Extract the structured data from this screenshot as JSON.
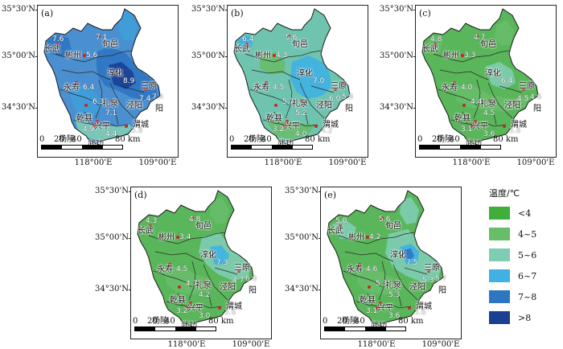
{
  "lat_labels": [
    "35°30'N",
    "35°00'N",
    "34°30'N"
  ],
  "lon_labels": [
    "118°00'E",
    "109°00'E"
  ],
  "scalebar": {
    "labels": [
      "0",
      "20",
      "40",
      "80 km"
    ]
  },
  "legend": {
    "title": "温度/℃",
    "items": [
      {
        "label": "<4",
        "color": "#3fae3a"
      },
      {
        "label": "4~5",
        "color": "#67bd6a"
      },
      {
        "label": "5~6",
        "color": "#7ecdb2"
      },
      {
        "label": "6~7",
        "color": "#3fb1e3"
      },
      {
        "label": "7~8",
        "color": "#2f76c2"
      },
      {
        "label": ">8",
        "color": "#1b3f93"
      }
    ]
  },
  "city_names": {
    "changwu": "长武",
    "binzhou": "彬州",
    "xunyi": "旬邑",
    "chunhua": "淳化",
    "yongshou": "永寿",
    "sanyuan": "三原",
    "qianxian": "乾县",
    "liquan": "礼泉",
    "jingyang": "泾阳",
    "yang": "阳",
    "yangling": "杨陵",
    "wugong": "武功",
    "xingping": "兴平",
    "weicheng": "渭城"
  },
  "panels": [
    {
      "id": "a",
      "label": "(a)",
      "base_color": "#4a8fd0",
      "values": {
        "changwu": "7.6",
        "xunyi": "7.1",
        "binzhou": "5.6",
        "yongshou": "6.4",
        "chunhua": "8.9",
        "sanyuan": "7.4",
        "jingyang": "7.4",
        "liquan": "6.3",
        "qianxian": "7.1",
        "xingping": "4.9",
        "wugong": "4.4",
        "weicheng": "3.8"
      }
    },
    {
      "id": "b",
      "label": "(b)",
      "base_color": "#6fc4b0",
      "values": {
        "changwu": "6.4",
        "xunyi": "5.6",
        "binzhou": "4.3",
        "yongshou": "4.5",
        "chunhua": "7.0",
        "sanyuan": "5.9",
        "jingyang": "6.0",
        "liquan": "5.7",
        "qianxian": "5.2",
        "xingping": "3.2",
        "wugong": "4.0",
        "weicheng": "4.2"
      }
    },
    {
      "id": "c",
      "label": "(c)",
      "base_color": "#5ab65a",
      "values": {
        "changwu": "4.8",
        "xunyi": "4.7",
        "binzhou": "3.3",
        "yongshou": "4.0",
        "chunhua": "6.4",
        "sanyuan": "4.6",
        "jingyang": "4.5",
        "liquan": "4.4",
        "qianxian": "4.5",
        "xingping": "3.1",
        "wugong": "3.6",
        "weicheng": "3.6"
      }
    },
    {
      "id": "d",
      "label": "(d)",
      "base_color": "#5ab65a",
      "values": {
        "changwu": "4.3",
        "xunyi": "4.8",
        "binzhou": "3.4",
        "yongshou": "4.5",
        "chunhua": "7.3",
        "sanyuan": "6.0",
        "jingyang": "4.7",
        "liquan": "4.7",
        "qianxian": "4.2",
        "xingping": "3.2",
        "wugong": "3.0",
        "weicheng": "3.6"
      }
    },
    {
      "id": "e",
      "label": "(e)",
      "base_color": "#5ab65a",
      "values": {
        "changwu": "5.0",
        "xunyi": "5.6",
        "binzhou": "4.2",
        "yongshou": "4.6",
        "chunhua": "7.5",
        "sanyuan": "5.7",
        "jingyang": "5.3",
        "liquan": "5.3",
        "qianxian": "5.3",
        "xingping": "3.1",
        "wugong": "3.6",
        "weicheng": "3.6"
      }
    }
  ]
}
